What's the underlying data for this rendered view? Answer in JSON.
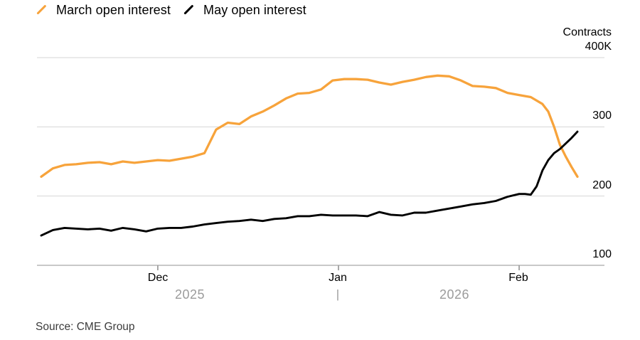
{
  "legend": {
    "items": [
      {
        "id": "march",
        "label": "March open interest",
        "color": "#F7A33B",
        "marker": "slash-icon"
      },
      {
        "id": "may",
        "label": "May open interest",
        "color": "#000000",
        "marker": "slash-icon"
      }
    ]
  },
  "axis": {
    "y": {
      "unit": "Contracts",
      "ticks": [
        {
          "value": 400,
          "label": "400K"
        },
        {
          "value": 300,
          "label": "300"
        },
        {
          "value": 200,
          "label": "200"
        },
        {
          "value": 100,
          "label": "100"
        }
      ]
    },
    "x": {
      "ticks": [
        {
          "label": "Dec",
          "date": "Dec 1"
        },
        {
          "label": "Jan",
          "date": "Jan 1"
        },
        {
          "label": "Feb",
          "date": "Feb 1"
        }
      ],
      "year_left": "2025",
      "year_divider": "|",
      "year_right": "2026"
    }
  },
  "source": "Source: CME Group",
  "colors": {
    "march_line": "#F7A33B",
    "may_line": "#000000",
    "gridline": "#D6D6D6",
    "axis_line": "#A6A6A6",
    "tick": "#7b7b7b",
    "year_text": "#9b9b9b"
  },
  "chart_data": {
    "type": "line",
    "title": "",
    "xlabel": "",
    "ylabel": "Contracts",
    "unit": "thousand contracts",
    "ylim": [
      100,
      400
    ],
    "x_range": [
      "Nov 11",
      "Feb 11"
    ],
    "grid": "horizontal",
    "legend_position": "top-left",
    "series": [
      {
        "id": "march",
        "name": "March open interest",
        "color": "#F7A33B",
        "points": [
          [
            "Nov 11",
            228
          ],
          [
            "Nov 13",
            240
          ],
          [
            "Nov 15",
            245
          ],
          [
            "Nov 17",
            246
          ],
          [
            "Nov 19",
            248
          ],
          [
            "Nov 21",
            249
          ],
          [
            "Nov 23",
            246
          ],
          [
            "Nov 25",
            250
          ],
          [
            "Nov 27",
            248
          ],
          [
            "Nov 29",
            250
          ],
          [
            "Dec 1",
            252
          ],
          [
            "Dec 3",
            251
          ],
          [
            "Dec 5",
            254
          ],
          [
            "Dec 7",
            257
          ],
          [
            "Dec 9",
            262
          ],
          [
            "Dec 11",
            296
          ],
          [
            "Dec 13",
            306
          ],
          [
            "Dec 15",
            304
          ],
          [
            "Dec 17",
            315
          ],
          [
            "Dec 19",
            322
          ],
          [
            "Dec 21",
            331
          ],
          [
            "Dec 23",
            341
          ],
          [
            "Dec 25",
            348
          ],
          [
            "Dec 27",
            349
          ],
          [
            "Dec 29",
            354
          ],
          [
            "Dec 31",
            367
          ],
          [
            "Jan 2",
            369
          ],
          [
            "Jan 4",
            369
          ],
          [
            "Jan 6",
            368
          ],
          [
            "Jan 8",
            364
          ],
          [
            "Jan 10",
            361
          ],
          [
            "Jan 12",
            365
          ],
          [
            "Jan 14",
            368
          ],
          [
            "Jan 16",
            372
          ],
          [
            "Jan 18",
            374
          ],
          [
            "Jan 20",
            373
          ],
          [
            "Jan 22",
            367
          ],
          [
            "Jan 24",
            359
          ],
          [
            "Jan 26",
            358
          ],
          [
            "Jan 28",
            356
          ],
          [
            "Jan 30",
            349
          ],
          [
            "Feb 1",
            346
          ],
          [
            "Feb 3",
            343
          ],
          [
            "Feb 5",
            333
          ],
          [
            "Feb 6",
            322
          ],
          [
            "Feb 7",
            300
          ],
          [
            "Feb 8",
            274
          ],
          [
            "Feb 9",
            257
          ],
          [
            "Feb 10",
            242
          ],
          [
            "Feb 11",
            228
          ]
        ]
      },
      {
        "id": "may",
        "name": "May open interest",
        "color": "#000000",
        "points": [
          [
            "Nov 11",
            143
          ],
          [
            "Nov 13",
            151
          ],
          [
            "Nov 15",
            154
          ],
          [
            "Nov 17",
            153
          ],
          [
            "Nov 19",
            152
          ],
          [
            "Nov 21",
            153
          ],
          [
            "Nov 23",
            150
          ],
          [
            "Nov 25",
            154
          ],
          [
            "Nov 27",
            152
          ],
          [
            "Nov 29",
            149
          ],
          [
            "Dec 1",
            153
          ],
          [
            "Dec 3",
            154
          ],
          [
            "Dec 5",
            154
          ],
          [
            "Dec 7",
            156
          ],
          [
            "Dec 9",
            159
          ],
          [
            "Dec 11",
            161
          ],
          [
            "Dec 13",
            163
          ],
          [
            "Dec 15",
            164
          ],
          [
            "Dec 17",
            166
          ],
          [
            "Dec 19",
            164
          ],
          [
            "Dec 21",
            167
          ],
          [
            "Dec 23",
            168
          ],
          [
            "Dec 25",
            171
          ],
          [
            "Dec 27",
            171
          ],
          [
            "Dec 29",
            173
          ],
          [
            "Dec 31",
            172
          ],
          [
            "Jan 2",
            172
          ],
          [
            "Jan 4",
            172
          ],
          [
            "Jan 6",
            171
          ],
          [
            "Jan 8",
            177
          ],
          [
            "Jan 10",
            173
          ],
          [
            "Jan 12",
            172
          ],
          [
            "Jan 14",
            176
          ],
          [
            "Jan 16",
            176
          ],
          [
            "Jan 18",
            179
          ],
          [
            "Jan 20",
            182
          ],
          [
            "Jan 22",
            185
          ],
          [
            "Jan 24",
            188
          ],
          [
            "Jan 26",
            190
          ],
          [
            "Jan 28",
            193
          ],
          [
            "Jan 30",
            199
          ],
          [
            "Feb 1",
            203
          ],
          [
            "Feb 2",
            203
          ],
          [
            "Feb 3",
            202
          ],
          [
            "Feb 4",
            214
          ],
          [
            "Feb 5",
            237
          ],
          [
            "Feb 6",
            252
          ],
          [
            "Feb 7",
            262
          ],
          [
            "Feb 8",
            268
          ],
          [
            "Feb 9",
            276
          ],
          [
            "Feb 10",
            284
          ],
          [
            "Feb 11",
            293
          ]
        ]
      }
    ]
  }
}
